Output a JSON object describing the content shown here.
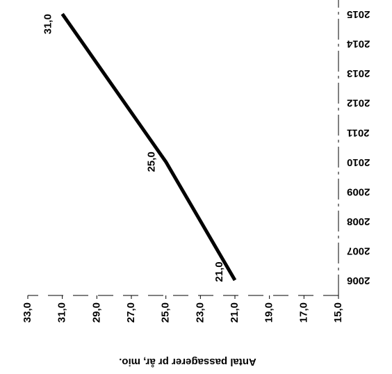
{
  "chart_data": {
    "type": "line",
    "y_label": "Antal passagerer pr år, mio.",
    "categories": [
      "2006",
      "2007",
      "2008",
      "2009",
      "2010",
      "2011",
      "2012",
      "2013",
      "2014",
      "2015"
    ],
    "series": [
      {
        "color": "#000000",
        "values": [
          21.0,
          22.0,
          23.0,
          24.0,
          25.0,
          26.2,
          27.4,
          28.6,
          29.8,
          31.0
        ],
        "value_labels": [
          "21,0",
          null,
          null,
          null,
          "25,0",
          null,
          null,
          null,
          null,
          "31,0"
        ]
      }
    ],
    "ylim": [
      15,
      33
    ],
    "yticks": [
      {
        "value": 15,
        "label": "15,0"
      },
      {
        "value": 17,
        "label": "17,0"
      },
      {
        "value": 19,
        "label": "19,0"
      },
      {
        "value": 21,
        "label": "21,0"
      },
      {
        "value": 23,
        "label": "23,0"
      },
      {
        "value": 25,
        "label": "25,0"
      },
      {
        "value": 27,
        "label": "27,0"
      },
      {
        "value": 29,
        "label": "29,0"
      },
      {
        "value": 31,
        "label": "31,0"
      },
      {
        "value": 33,
        "label": "33,0"
      }
    ],
    "grid": false
  }
}
